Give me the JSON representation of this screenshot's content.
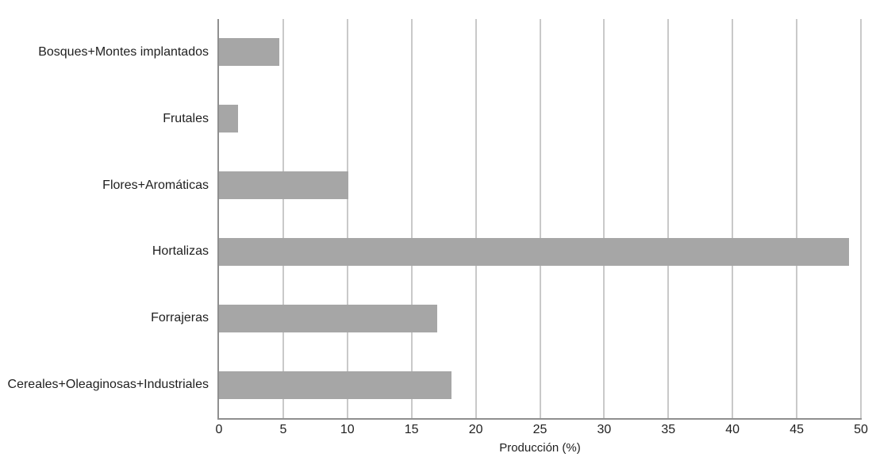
{
  "chart_data": {
    "type": "bar",
    "orientation": "horizontal",
    "title": "",
    "xlabel": "Producción (%)",
    "ylabel": "",
    "categories": [
      "Bosques+Montes implantados",
      "Frutales",
      "Flores+Aromáticas",
      "Hortalizas",
      "Forrajeras",
      "Cereales+Oleaginosas+Industriales"
    ],
    "values": [
      4.7,
      1.5,
      10.1,
      49.1,
      17,
      18.1
    ],
    "xlim": [
      0,
      50
    ],
    "xticks": [
      0,
      5,
      10,
      15,
      20,
      25,
      30,
      35,
      40,
      45,
      50
    ],
    "grid": "vertical-only",
    "legend": "none",
    "colors": {
      "bar": "#a6a6a6",
      "gridline": "#c9c9c9",
      "axis": "#8f8f8f",
      "text": "#1f1f1f",
      "background": "#ffffff"
    }
  }
}
